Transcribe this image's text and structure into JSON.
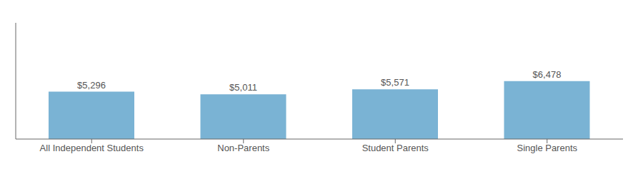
{
  "chart_data": {
    "type": "bar",
    "categories": [
      "All Independent Students",
      "Non-Parents",
      "Student Parents",
      "Single Parents"
    ],
    "values": [
      5296,
      5011,
      5571,
      6478
    ],
    "value_labels": [
      "$5,296",
      "$5,011",
      "$5,571",
      "$6,478"
    ],
    "color": "#7ab3d4",
    "ylim": [
      0,
      13000
    ],
    "data_labels": true,
    "tick_labels": "x",
    "grid": false
  }
}
